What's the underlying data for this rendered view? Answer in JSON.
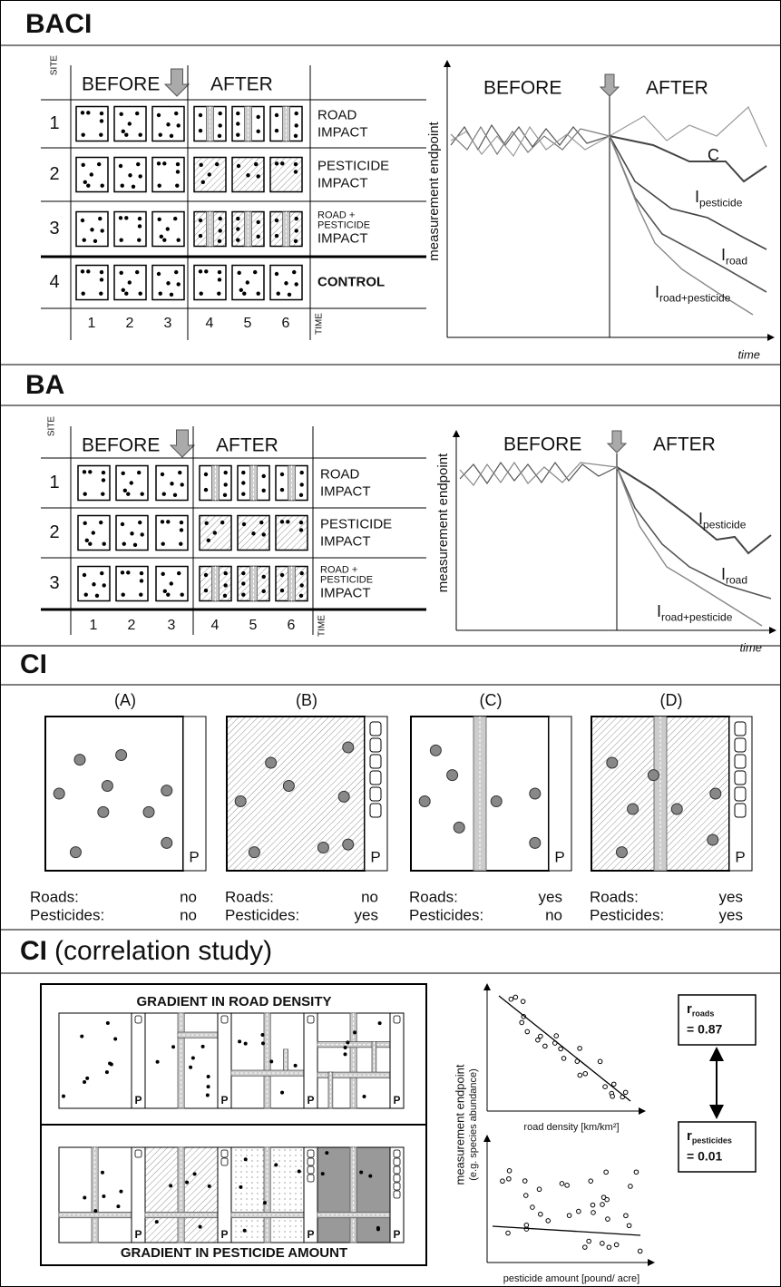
{
  "baci": {
    "title": "BACI",
    "table": {
      "site": "SITE",
      "before": "BEFORE",
      "after": "AFTER",
      "time": "TIME",
      "sites": [
        "1",
        "2",
        "3",
        "4"
      ],
      "row_labels": [
        [
          "ROAD",
          "IMPACT"
        ],
        [
          "PESTICIDE",
          "IMPACT"
        ],
        [
          "ROAD +",
          "PESTICIDE",
          "IMPACT"
        ],
        [
          "CONTROL"
        ]
      ],
      "times": [
        "1",
        "2",
        "3",
        "4",
        "5",
        "6"
      ]
    },
    "chart": {
      "ylabel": "measurement endpoint",
      "before": "BEFORE",
      "after": "AFTER",
      "xlabel": "time",
      "curve_labels": [
        {
          "main": "C"
        },
        {
          "main": "I",
          "sub": "pesticide"
        },
        {
          "main": "I",
          "sub": "road"
        },
        {
          "main": "I",
          "sub": "road+pesticide"
        }
      ]
    }
  },
  "ba": {
    "title": "BA",
    "table": {
      "site": "SITE",
      "before": "BEFORE",
      "after": "AFTER",
      "time": "TIME",
      "sites": [
        "1",
        "2",
        "3"
      ],
      "row_labels": [
        [
          "ROAD",
          "IMPACT"
        ],
        [
          "PESTICIDE",
          "IMPACT"
        ],
        [
          "ROAD +",
          "PESTICIDE",
          "IMPACT"
        ]
      ],
      "times": [
        "1",
        "2",
        "3",
        "4",
        "5",
        "6"
      ]
    },
    "chart": {
      "ylabel": "measurement endpoint",
      "before": "BEFORE",
      "after": "AFTER",
      "xlabel": "time",
      "curve_labels": [
        {
          "main": "I",
          "sub": "pesticide"
        },
        {
          "main": "I",
          "sub": "road"
        },
        {
          "main": "I",
          "sub": "road+pesticide"
        }
      ]
    }
  },
  "ci": {
    "title": "CI",
    "panels": [
      {
        "id": "(A)",
        "p": "P",
        "roads_label": "Roads:",
        "roads": "no",
        "pesticides_label": "Pesticides:",
        "pesticides": "no"
      },
      {
        "id": "(B)",
        "p": "P",
        "roads_label": "Roads:",
        "roads": "no",
        "pesticides_label": "Pesticides:",
        "pesticides": "yes"
      },
      {
        "id": "(C)",
        "p": "P",
        "roads_label": "Roads:",
        "roads": "yes",
        "pesticides_label": "Pesticides:",
        "pesticides": "no"
      },
      {
        "id": "(D)",
        "p": "P",
        "roads_label": "Roads:",
        "roads": "yes",
        "pesticides_label": "Pesticides:",
        "pesticides": "yes"
      }
    ]
  },
  "correlation": {
    "title_bold": "CI",
    "title_rest": "(correlation study)",
    "road_gradient": "GRADIENT IN ROAD DENSITY",
    "pesticide_gradient": "GRADIENT IN PESTICIDE AMOUNT",
    "p_labels": [
      "P",
      "P",
      "P",
      "P",
      "P",
      "P",
      "P",
      "P"
    ],
    "ylabel": "measurement endpoint",
    "ylabel_note": "(e.g. species abundance)",
    "xlabel_top": "road density [km/km²]",
    "xlabel_bottom": "pesticide amount [pound/ acre]",
    "r_roads": {
      "symbol": "r",
      "sub": "roads",
      "value": "= 0.87"
    },
    "r_pesticides": {
      "symbol": "r",
      "sub": "pesticides",
      "value": "= 0.01"
    }
  }
}
